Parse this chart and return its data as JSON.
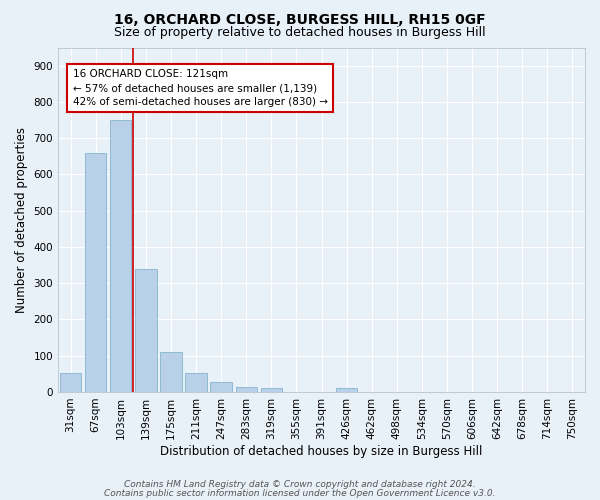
{
  "title1": "16, ORCHARD CLOSE, BURGESS HILL, RH15 0GF",
  "title2": "Size of property relative to detached houses in Burgess Hill",
  "xlabel": "Distribution of detached houses by size in Burgess Hill",
  "ylabel": "Number of detached properties",
  "bar_color": "#b8d0e8",
  "bar_edge_color": "#7aaacb",
  "bg_color": "#e8f0f8",
  "grid_color": "#ffffff",
  "categories": [
    "31sqm",
    "67sqm",
    "103sqm",
    "139sqm",
    "175sqm",
    "211sqm",
    "247sqm",
    "283sqm",
    "319sqm",
    "355sqm",
    "391sqm",
    "426sqm",
    "462sqm",
    "498sqm",
    "534sqm",
    "570sqm",
    "606sqm",
    "642sqm",
    "678sqm",
    "714sqm",
    "750sqm"
  ],
  "values": [
    52,
    660,
    750,
    338,
    110,
    52,
    27,
    15,
    10,
    0,
    0,
    10,
    0,
    0,
    0,
    0,
    0,
    0,
    0,
    0,
    0
  ],
  "ylim": [
    0,
    950
  ],
  "yticks": [
    0,
    100,
    200,
    300,
    400,
    500,
    600,
    700,
    800,
    900
  ],
  "vline_x": 2.5,
  "vline_color": "#cc0000",
  "annotation_line1": "16 ORCHARD CLOSE: 121sqm",
  "annotation_line2": "← 57% of detached houses are smaller (1,139)",
  "annotation_line3": "42% of semi-detached houses are larger (830) →",
  "footer1": "Contains HM Land Registry data © Crown copyright and database right 2024.",
  "footer2": "Contains public sector information licensed under the Open Government Licence v3.0.",
  "title_fontsize": 10,
  "subtitle_fontsize": 9,
  "axis_label_fontsize": 8.5,
  "tick_fontsize": 7.5,
  "annotation_fontsize": 7.5,
  "footer_fontsize": 6.5
}
